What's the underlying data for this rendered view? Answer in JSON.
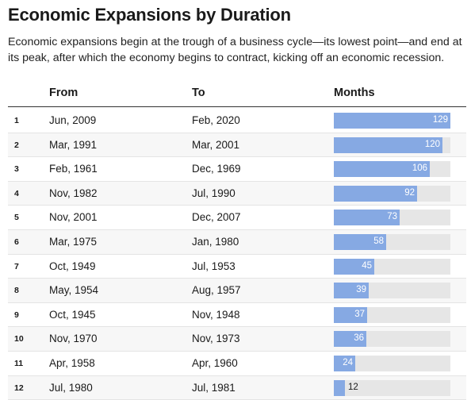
{
  "title": "Economic Expansions by Duration",
  "subtitle": "Economic expansions begin at the trough of a business cycle—its lowest point—and end at its peak, after which the economy begins to contract, kicking off an economic recession.",
  "columns": {
    "rank": "",
    "from": "From",
    "to": "To",
    "months": "Months"
  },
  "colors": {
    "bar": "#86a9e3",
    "track": "#e6e6e6"
  },
  "chart_data": {
    "type": "table",
    "title": "Economic Expansions by Duration",
    "columns": [
      "",
      "From",
      "To",
      "Months"
    ],
    "xlim": [
      0,
      129
    ],
    "rows": [
      {
        "rank": "1",
        "from": "Jun, 2009",
        "to": "Feb, 2020",
        "months": 129
      },
      {
        "rank": "2",
        "from": "Mar, 1991",
        "to": "Mar, 2001",
        "months": 120
      },
      {
        "rank": "3",
        "from": "Feb, 1961",
        "to": "Dec, 1969",
        "months": 106
      },
      {
        "rank": "4",
        "from": "Nov, 1982",
        "to": "Jul, 1990",
        "months": 92
      },
      {
        "rank": "5",
        "from": "Nov, 2001",
        "to": "Dec, 2007",
        "months": 73
      },
      {
        "rank": "6",
        "from": "Mar, 1975",
        "to": "Jan, 1980",
        "months": 58
      },
      {
        "rank": "7",
        "from": "Oct, 1949",
        "to": "Jul, 1953",
        "months": 45
      },
      {
        "rank": "8",
        "from": "May, 1954",
        "to": "Aug, 1957",
        "months": 39
      },
      {
        "rank": "9",
        "from": "Oct, 1945",
        "to": "Nov, 1948",
        "months": 37
      },
      {
        "rank": "10",
        "from": "Nov, 1970",
        "to": "Nov, 1973",
        "months": 36
      },
      {
        "rank": "11",
        "from": "Apr, 1958",
        "to": "Apr, 1960",
        "months": 24
      },
      {
        "rank": "12",
        "from": "Jul, 1980",
        "to": "Jul, 1981",
        "months": 12
      }
    ]
  }
}
